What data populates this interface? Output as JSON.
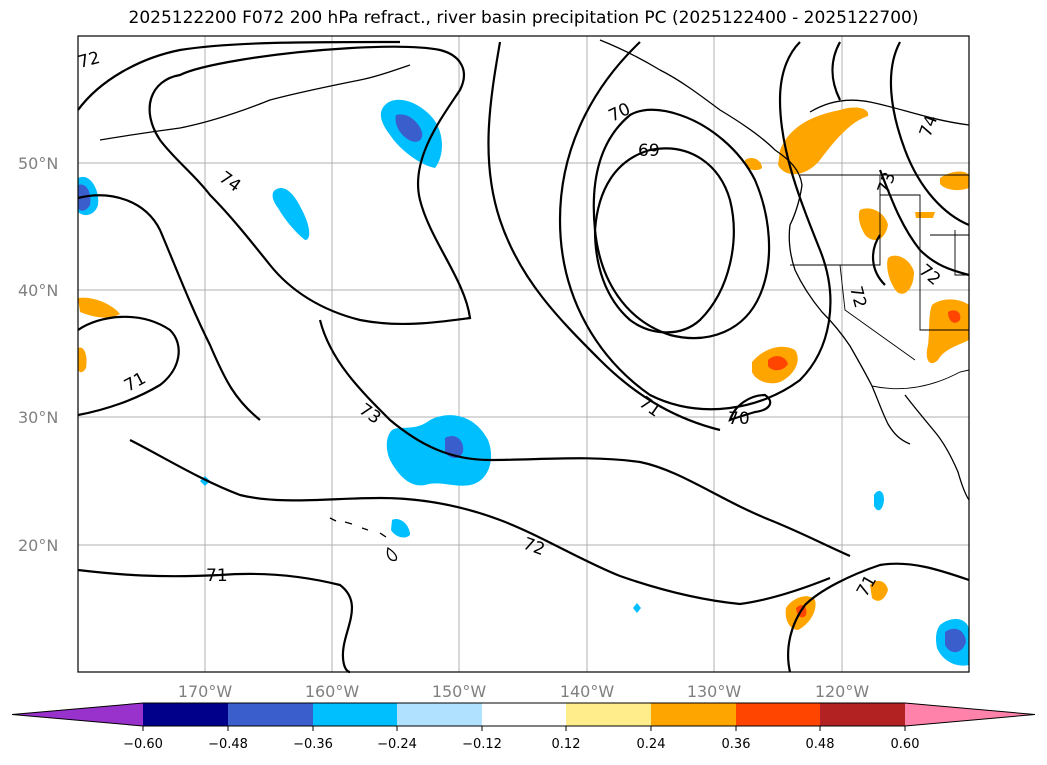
{
  "title": "2025122200 F072 200 hPa refract., river basin precipitation PC (2025122400 - 2025122700)",
  "map": {
    "lat_labels": [
      "50°N",
      "40°N",
      "30°N",
      "20°N"
    ],
    "lon_labels": [
      "170°W",
      "160°W",
      "150°W",
      "140°W",
      "130°W",
      "120°W"
    ],
    "contour_labels": [
      "72",
      "74",
      "71",
      "73",
      "70",
      "69",
      "71",
      "70",
      "72",
      "71",
      "74",
      "73",
      "72",
      "72",
      "71"
    ]
  },
  "colorbar": {
    "ticks": [
      "−0.60",
      "−0.48",
      "−0.36",
      "−0.24",
      "−0.12",
      "0.12",
      "0.24",
      "0.36",
      "0.48",
      "0.60"
    ],
    "colors": [
      "#9932cc",
      "#00008b",
      "#3a5fcd",
      "#00bfff",
      "#b0e2ff",
      "#ffffff",
      "#ffec8b",
      "#ffa500",
      "#ff4500",
      "#b22222",
      "#ff82ab"
    ]
  }
}
